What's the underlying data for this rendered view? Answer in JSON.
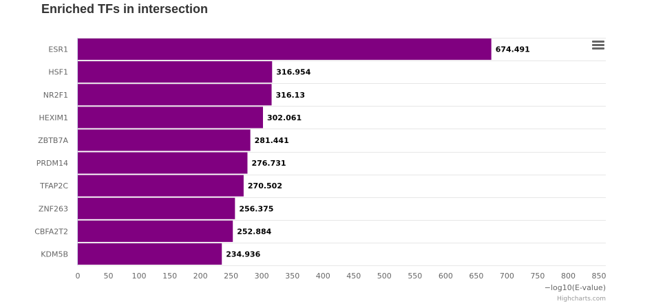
{
  "chart_data": {
    "type": "bar",
    "orientation": "horizontal",
    "title": "Enriched TFs in intersection",
    "categories": [
      "ESR1",
      "HSF1",
      "NR2F1",
      "HEXIM1",
      "ZBTB7A",
      "PRDM14",
      "TFAP2C",
      "ZNF263",
      "CBFA2T2",
      "KDM5B"
    ],
    "values": [
      674.491,
      316.954,
      316.13,
      302.061,
      281.441,
      276.731,
      270.502,
      256.375,
      252.884,
      234.936
    ],
    "value_labels": [
      "674.491",
      "316.954",
      "316.13",
      "302.061",
      "281.441",
      "276.731",
      "270.502",
      "256.375",
      "252.884",
      "234.936"
    ],
    "xlabel": "",
    "ylabel": "−log10(E-value)",
    "axis_range": [
      0,
      850
    ],
    "ticks": [
      0,
      50,
      100,
      150,
      200,
      250,
      300,
      350,
      400,
      450,
      500,
      550,
      600,
      650,
      700,
      750,
      800,
      850
    ],
    "bar_color": "#800080",
    "credits": "Highcharts.com"
  },
  "icons": {
    "menu": "hamburger-menu-icon"
  }
}
